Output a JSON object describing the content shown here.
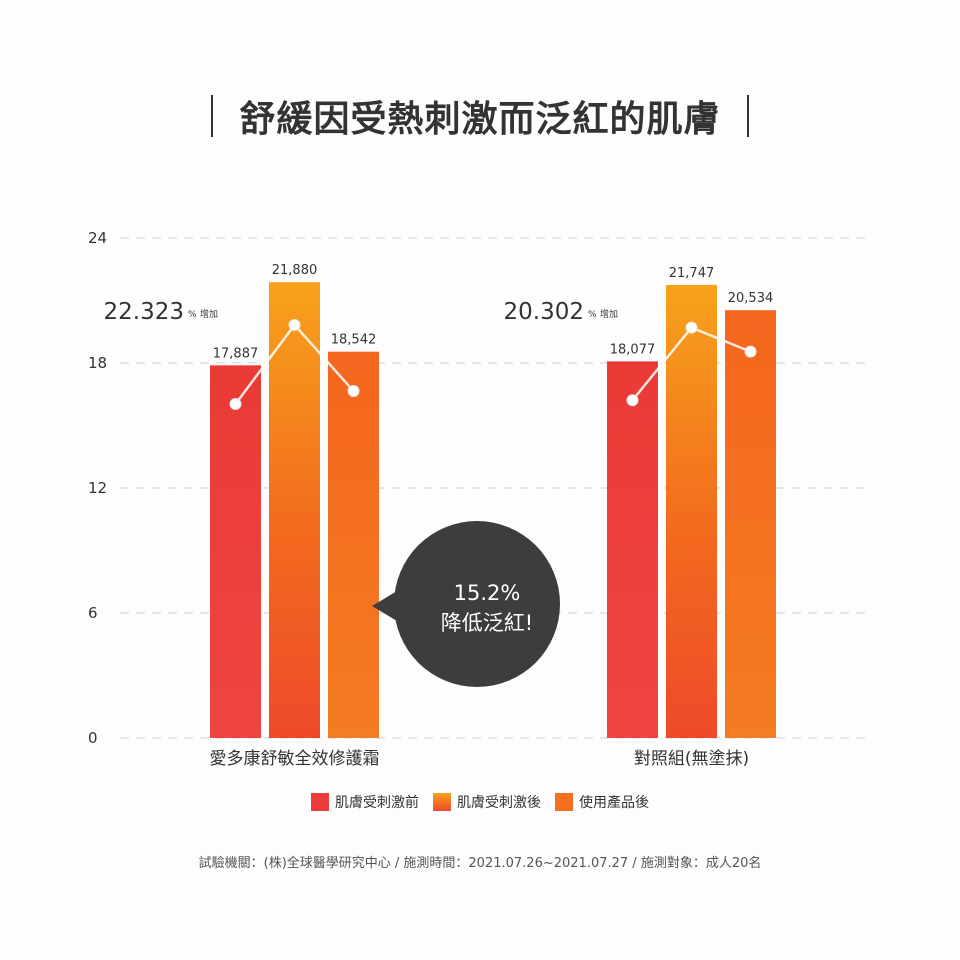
{
  "title": "舒緩因受熱刺激而泛紅的肌膚",
  "chart_data": {
    "type": "bar",
    "categories": [
      "愛多康舒敏全效修護霜",
      "對照組(無塗抹)"
    ],
    "series": [
      {
        "name": "肌膚受刺激前",
        "values": [
          17.887,
          18.077
        ],
        "labels": [
          "17,887",
          "18,077"
        ],
        "color": "#ec3b3b"
      },
      {
        "name": "肌膚受刺激後",
        "values": [
          21.88,
          21.747
        ],
        "labels": [
          "21,880",
          "21,747"
        ],
        "color": "#f26a1e"
      },
      {
        "name": "使用產品後",
        "values": [
          18.542,
          20.534
        ],
        "labels": [
          "18,542",
          "20,534"
        ],
        "color": "#f4701f"
      }
    ],
    "yticks": [
      "24",
      "18",
      "12",
      "6",
      "0"
    ],
    "ylim": [
      0,
      24
    ],
    "grid": true,
    "legend": "bottom",
    "increase_annotations": [
      {
        "value": "22.323",
        "unit": "%",
        "text": "增加"
      },
      {
        "value": "20.302",
        "unit": "%",
        "text": "增加"
      }
    ],
    "callout": {
      "line1": "15.2%",
      "line2": "降低泛紅!"
    }
  },
  "colors": {
    "red": "#ec3b3b",
    "orange": "#f26a1e",
    "callout_bg": "#3d3d3d",
    "grid": "#d8d8d8"
  },
  "footnote": "試驗機關：(株)全球醫學研究中心 / 施測時間：2021.07.26~2021.07.27 / 施測對象：成人20名"
}
